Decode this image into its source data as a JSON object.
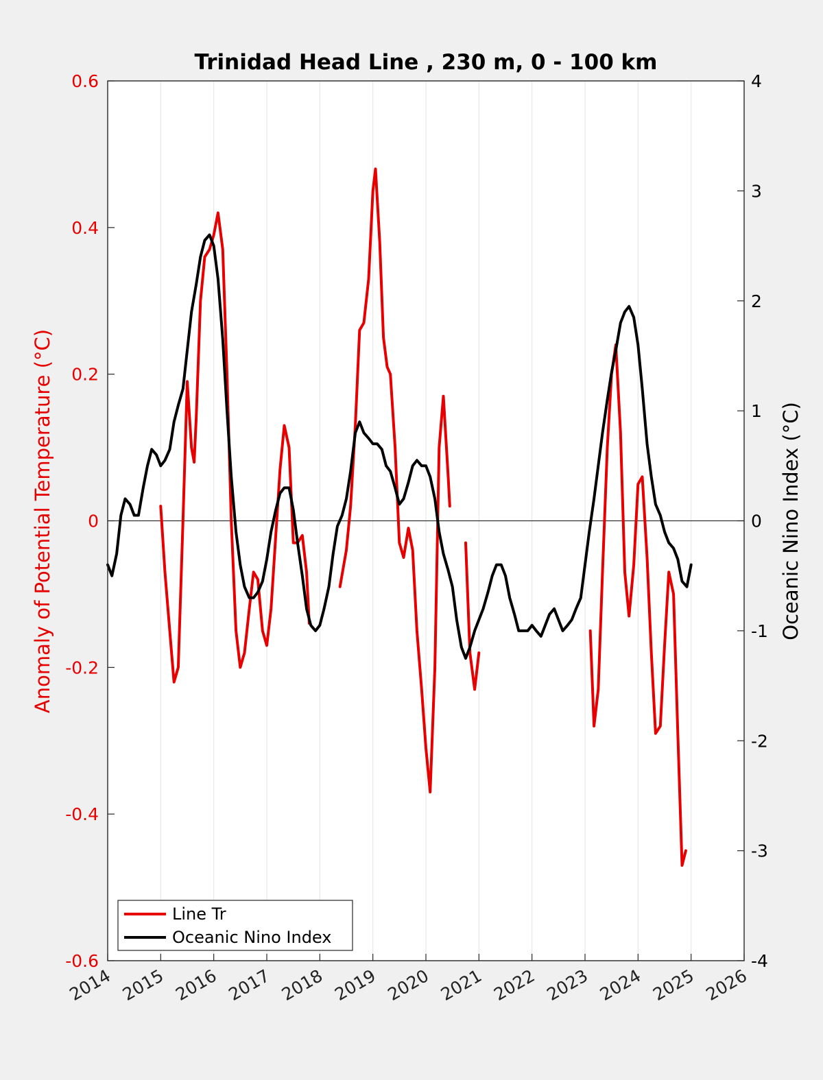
{
  "chart_data": {
    "type": "line",
    "title": "Trinidad Head Line , 230 m, 0 - 100 km",
    "x_ticks": [
      "2014",
      "2015",
      "2016",
      "2017",
      "2018",
      "2019",
      "2020",
      "2021",
      "2022",
      "2023",
      "2024",
      "2025",
      "2026"
    ],
    "xlim": [
      2014,
      2026
    ],
    "grid": "vertical",
    "y_left": {
      "label": "Anomaly of Potential Temperature (°C)",
      "ticks": [
        "-0.6",
        "-0.4",
        "-0.2",
        "0",
        "0.2",
        "0.4",
        "0.6"
      ],
      "lim": [
        -0.6,
        0.6
      ],
      "color": "#e60000"
    },
    "y_right": {
      "label": "Oceanic Nino Index (°C)",
      "ticks": [
        "-4",
        "-3",
        "-2",
        "-1",
        "0",
        "1",
        "2",
        "3",
        "4"
      ],
      "lim": [
        -4,
        4
      ],
      "color": "#000000"
    },
    "zero_line": true,
    "legend_position": "bottom-left",
    "series": [
      {
        "name": "Line Tr",
        "axis": "left",
        "color": "#e60000",
        "segments": [
          [
            [
              2015.0,
              0.02
            ],
            [
              2015.08,
              -0.07
            ],
            [
              2015.17,
              -0.15
            ],
            [
              2015.25,
              -0.22
            ],
            [
              2015.33,
              -0.2
            ],
            [
              2015.42,
              0.0
            ],
            [
              2015.5,
              0.19
            ],
            [
              2015.58,
              0.1
            ],
            [
              2015.63,
              0.08
            ],
            [
              2015.67,
              0.14
            ],
            [
              2015.75,
              0.3
            ],
            [
              2015.83,
              0.36
            ],
            [
              2015.92,
              0.37
            ],
            [
              2016.0,
              0.39
            ],
            [
              2016.08,
              0.42
            ],
            [
              2016.17,
              0.37
            ],
            [
              2016.25,
              0.2
            ],
            [
              2016.33,
              0.0
            ],
            [
              2016.42,
              -0.15
            ],
            [
              2016.5,
              -0.2
            ],
            [
              2016.58,
              -0.18
            ],
            [
              2016.67,
              -0.12
            ],
            [
              2016.75,
              -0.07
            ],
            [
              2016.83,
              -0.08
            ],
            [
              2016.92,
              -0.15
            ],
            [
              2017.0,
              -0.17
            ],
            [
              2017.08,
              -0.12
            ],
            [
              2017.17,
              -0.02
            ],
            [
              2017.25,
              0.07
            ],
            [
              2017.33,
              0.13
            ],
            [
              2017.42,
              0.1
            ],
            [
              2017.5,
              -0.03
            ],
            [
              2017.58,
              -0.03
            ],
            [
              2017.67,
              -0.02
            ],
            [
              2017.75,
              -0.07
            ],
            [
              2017.8,
              -0.14
            ]
          ],
          [
            [
              2018.38,
              -0.09
            ],
            [
              2018.5,
              -0.04
            ],
            [
              2018.58,
              0.02
            ],
            [
              2018.67,
              0.13
            ],
            [
              2018.75,
              0.26
            ],
            [
              2018.83,
              0.27
            ],
            [
              2018.92,
              0.33
            ],
            [
              2019.0,
              0.45
            ],
            [
              2019.05,
              0.48
            ],
            [
              2019.13,
              0.38
            ],
            [
              2019.2,
              0.25
            ],
            [
              2019.27,
              0.21
            ],
            [
              2019.33,
              0.2
            ],
            [
              2019.42,
              0.1
            ],
            [
              2019.5,
              -0.03
            ],
            [
              2019.58,
              -0.05
            ],
            [
              2019.67,
              -0.01
            ],
            [
              2019.75,
              -0.04
            ],
            [
              2019.83,
              -0.15
            ],
            [
              2019.92,
              -0.23
            ],
            [
              2020.0,
              -0.31
            ],
            [
              2020.08,
              -0.37
            ],
            [
              2020.17,
              -0.2
            ],
            [
              2020.25,
              0.1
            ],
            [
              2020.33,
              0.17
            ],
            [
              2020.42,
              0.06
            ],
            [
              2020.45,
              0.02
            ]
          ],
          [
            [
              2020.75,
              -0.03
            ],
            [
              2020.83,
              -0.18
            ],
            [
              2020.92,
              -0.23
            ],
            [
              2021.0,
              -0.18
            ]
          ],
          [
            [
              2023.1,
              -0.15
            ],
            [
              2023.17,
              -0.28
            ],
            [
              2023.25,
              -0.23
            ],
            [
              2023.33,
              -0.07
            ],
            [
              2023.42,
              0.1
            ],
            [
              2023.5,
              0.2
            ],
            [
              2023.58,
              0.24
            ],
            [
              2023.67,
              0.12
            ],
            [
              2023.75,
              -0.07
            ],
            [
              2023.83,
              -0.13
            ],
            [
              2023.92,
              -0.06
            ],
            [
              2024.0,
              0.05
            ],
            [
              2024.08,
              0.06
            ],
            [
              2024.17,
              -0.05
            ],
            [
              2024.25,
              -0.18
            ],
            [
              2024.33,
              -0.29
            ],
            [
              2024.42,
              -0.28
            ],
            [
              2024.5,
              -0.17
            ],
            [
              2024.58,
              -0.07
            ],
            [
              2024.67,
              -0.1
            ],
            [
              2024.75,
              -0.29
            ],
            [
              2024.83,
              -0.47
            ],
            [
              2024.9,
              -0.45
            ]
          ]
        ]
      },
      {
        "name": "Oceanic Nino Index",
        "axis": "right",
        "color": "#000000",
        "points": [
          [
            2014.0,
            -0.4
          ],
          [
            2014.08,
            -0.5
          ],
          [
            2014.17,
            -0.3
          ],
          [
            2014.25,
            0.05
          ],
          [
            2014.33,
            0.2
          ],
          [
            2014.42,
            0.15
          ],
          [
            2014.5,
            0.05
          ],
          [
            2014.58,
            0.05
          ],
          [
            2014.67,
            0.3
          ],
          [
            2014.75,
            0.5
          ],
          [
            2014.83,
            0.65
          ],
          [
            2014.92,
            0.6
          ],
          [
            2015.0,
            0.5
          ],
          [
            2015.08,
            0.55
          ],
          [
            2015.17,
            0.65
          ],
          [
            2015.25,
            0.9
          ],
          [
            2015.33,
            1.05
          ],
          [
            2015.42,
            1.2
          ],
          [
            2015.5,
            1.55
          ],
          [
            2015.58,
            1.9
          ],
          [
            2015.67,
            2.15
          ],
          [
            2015.75,
            2.4
          ],
          [
            2015.83,
            2.55
          ],
          [
            2015.92,
            2.6
          ],
          [
            2016.0,
            2.5
          ],
          [
            2016.08,
            2.2
          ],
          [
            2016.17,
            1.65
          ],
          [
            2016.25,
            1.0
          ],
          [
            2016.33,
            0.4
          ],
          [
            2016.42,
            -0.1
          ],
          [
            2016.5,
            -0.4
          ],
          [
            2016.58,
            -0.6
          ],
          [
            2016.67,
            -0.7
          ],
          [
            2016.75,
            -0.7
          ],
          [
            2016.83,
            -0.65
          ],
          [
            2016.92,
            -0.55
          ],
          [
            2017.0,
            -0.35
          ],
          [
            2017.08,
            -0.1
          ],
          [
            2017.17,
            0.1
          ],
          [
            2017.25,
            0.25
          ],
          [
            2017.33,
            0.3
          ],
          [
            2017.42,
            0.3
          ],
          [
            2017.5,
            0.1
          ],
          [
            2017.58,
            -0.2
          ],
          [
            2017.67,
            -0.5
          ],
          [
            2017.75,
            -0.8
          ],
          [
            2017.83,
            -0.95
          ],
          [
            2017.92,
            -1.0
          ],
          [
            2018.0,
            -0.95
          ],
          [
            2018.08,
            -0.8
          ],
          [
            2018.17,
            -0.6
          ],
          [
            2018.25,
            -0.3
          ],
          [
            2018.33,
            -0.05
          ],
          [
            2018.42,
            0.05
          ],
          [
            2018.5,
            0.2
          ],
          [
            2018.58,
            0.45
          ],
          [
            2018.67,
            0.8
          ],
          [
            2018.75,
            0.9
          ],
          [
            2018.83,
            0.8
          ],
          [
            2018.92,
            0.75
          ],
          [
            2019.0,
            0.7
          ],
          [
            2019.08,
            0.7
          ],
          [
            2019.17,
            0.65
          ],
          [
            2019.25,
            0.5
          ],
          [
            2019.33,
            0.45
          ],
          [
            2019.42,
            0.3
          ],
          [
            2019.5,
            0.15
          ],
          [
            2019.58,
            0.2
          ],
          [
            2019.67,
            0.35
          ],
          [
            2019.75,
            0.5
          ],
          [
            2019.83,
            0.55
          ],
          [
            2019.92,
            0.5
          ],
          [
            2020.0,
            0.5
          ],
          [
            2020.08,
            0.4
          ],
          [
            2020.17,
            0.2
          ],
          [
            2020.25,
            -0.1
          ],
          [
            2020.33,
            -0.3
          ],
          [
            2020.42,
            -0.45
          ],
          [
            2020.5,
            -0.6
          ],
          [
            2020.58,
            -0.9
          ],
          [
            2020.67,
            -1.15
          ],
          [
            2020.75,
            -1.25
          ],
          [
            2020.83,
            -1.15
          ],
          [
            2020.92,
            -1.0
          ],
          [
            2021.0,
            -0.9
          ],
          [
            2021.08,
            -0.8
          ],
          [
            2021.17,
            -0.65
          ],
          [
            2021.25,
            -0.5
          ],
          [
            2021.33,
            -0.4
          ],
          [
            2021.42,
            -0.4
          ],
          [
            2021.5,
            -0.5
          ],
          [
            2021.58,
            -0.7
          ],
          [
            2021.67,
            -0.85
          ],
          [
            2021.75,
            -1.0
          ],
          [
            2021.83,
            -1.0
          ],
          [
            2021.92,
            -1.0
          ],
          [
            2022.0,
            -0.95
          ],
          [
            2022.08,
            -1.0
          ],
          [
            2022.17,
            -1.05
          ],
          [
            2022.25,
            -0.95
          ],
          [
            2022.33,
            -0.85
          ],
          [
            2022.42,
            -0.8
          ],
          [
            2022.5,
            -0.9
          ],
          [
            2022.58,
            -1.0
          ],
          [
            2022.67,
            -0.95
          ],
          [
            2022.75,
            -0.9
          ],
          [
            2022.83,
            -0.8
          ],
          [
            2022.92,
            -0.7
          ],
          [
            2023.0,
            -0.4
          ],
          [
            2023.08,
            -0.1
          ],
          [
            2023.17,
            0.2
          ],
          [
            2023.25,
            0.5
          ],
          [
            2023.33,
            0.8
          ],
          [
            2023.42,
            1.1
          ],
          [
            2023.5,
            1.35
          ],
          [
            2023.58,
            1.55
          ],
          [
            2023.67,
            1.8
          ],
          [
            2023.75,
            1.9
          ],
          [
            2023.83,
            1.95
          ],
          [
            2023.92,
            1.85
          ],
          [
            2024.0,
            1.6
          ],
          [
            2024.08,
            1.2
          ],
          [
            2024.17,
            0.7
          ],
          [
            2024.25,
            0.4
          ],
          [
            2024.33,
            0.15
          ],
          [
            2024.42,
            0.05
          ],
          [
            2024.5,
            -0.1
          ],
          [
            2024.58,
            -0.2
          ],
          [
            2024.67,
            -0.25
          ],
          [
            2024.75,
            -0.35
          ],
          [
            2024.83,
            -0.55
          ],
          [
            2024.92,
            -0.6
          ],
          [
            2025.0,
            -0.4
          ]
        ]
      }
    ]
  }
}
